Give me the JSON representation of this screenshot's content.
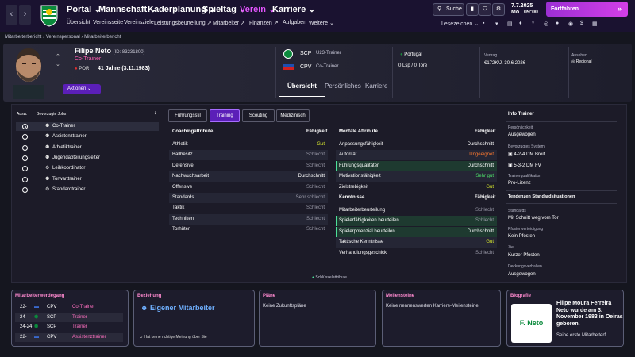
{
  "topnav": {
    "main": [
      "Portal",
      "Mannschaft",
      "Kaderplanung",
      "Spieltag",
      "Verein",
      "Karriere"
    ],
    "active": "Verein",
    "sub": [
      "Übersicht",
      "Vereinsseite",
      "Vereinsziele",
      "Leistungsbeurteilung",
      "Mitarbeiter",
      "Finanzen",
      "Aufgaben",
      "Weitere"
    ],
    "search": "Suche",
    "date_line1": "7.7.2025",
    "date_day": "Mo",
    "date_time": "09:00",
    "continue": "Fortfahren",
    "bookmarks": "Lesezeichen"
  },
  "breadcrumb": [
    "Mitarbeiterbericht",
    "Vereinspersonal",
    "Mitarbeiterbericht"
  ],
  "person": {
    "name": "Filipe Neto",
    "id": "(ID: 83231800)",
    "role": "Co-Trainer",
    "nation": "POR",
    "age": "41 Jahre (3.11.1983)",
    "actions": "Aktionen"
  },
  "clubs": [
    {
      "abbr": "SCP",
      "role": "U23-Trainer"
    },
    {
      "abbr": "CPV",
      "role": "Co-Trainer"
    }
  ],
  "header_stats": {
    "nationality": "Portugal",
    "apps": "0 Lsp / 0 Tore",
    "contract_label": "Vertrag",
    "contract_value": "€172K/J. 30.6.2026",
    "reputation_label": "Ansehen",
    "reputation_value": "Regional"
  },
  "tabs_main": [
    "Übersicht",
    "Persönliches",
    "Karriere"
  ],
  "jobs": {
    "col_select": "Ausw.",
    "col_jobs": "Bevorzugte Jobs",
    "items": [
      "Co-Trainer",
      "Assistenztrainer",
      "Athletiktrainer",
      "Jugendabteilungsleiter",
      "Leihkoordinator",
      "Torwarttrainer",
      "Standardtrainer"
    ]
  },
  "subtabs": [
    "Führungsstil",
    "Training",
    "Scouting",
    "Medizinisch"
  ],
  "coaching": {
    "title": "Coachingattribute",
    "value_header": "Fähigkeit",
    "rows": [
      {
        "name": "Athletik",
        "value": "Gut",
        "color": "yellow"
      },
      {
        "name": "Ballbesitz",
        "value": "Schlecht",
        "color": "gray"
      },
      {
        "name": "Defensive",
        "value": "Schlecht",
        "color": "gray"
      },
      {
        "name": "Nachwuchsarbeit",
        "value": "Durchschnitt",
        "color": "white"
      },
      {
        "name": "Offensive",
        "value": "Schlecht",
        "color": "gray"
      },
      {
        "name": "Standards",
        "value": "Sehr schlecht",
        "color": "gray"
      },
      {
        "name": "Taktik",
        "value": "Schlecht",
        "color": "gray"
      },
      {
        "name": "Techniken",
        "value": "Schlecht",
        "color": "gray"
      },
      {
        "name": "Torhüter",
        "value": "Schlecht",
        "color": "gray"
      }
    ]
  },
  "mental": {
    "title": "Mentale Attribute",
    "value_header": "Fähigkeit",
    "rows": [
      {
        "name": "Anpassungsfähigkeit",
        "value": "Durchschnitt",
        "color": "white"
      },
      {
        "name": "Autorität",
        "value": "Ungeeignet",
        "color": "orange"
      },
      {
        "name": "Führungsqualitäten",
        "value": "Durchschnitt",
        "color": "white"
      },
      {
        "name": "Motivationsfähigkeit",
        "value": "Sehr gut",
        "color": "green"
      },
      {
        "name": "Zielstrebigkeit",
        "value": "Gut",
        "color": "yellow"
      }
    ]
  },
  "knowledge": {
    "title": "Kenntnisse",
    "value_header": "Fähigkeit",
    "rows": [
      {
        "name": "Mitarbeiterbeurteilung",
        "value": "Schlecht",
        "color": "gray"
      },
      {
        "name": "Spielerfähigkeiten beurteilen",
        "value": "Schlecht",
        "color": "gray"
      },
      {
        "name": "Spielerpotenzial beurteilen",
        "value": "Durchschnitt",
        "color": "white"
      },
      {
        "name": "Taktische Kenntnisse",
        "value": "Gut",
        "color": "yellow"
      },
      {
        "name": "Verhandlungsgeschick",
        "value": "Schlecht",
        "color": "gray"
      }
    ]
  },
  "legend": "Schlüsselattribute",
  "info": {
    "title": "Info Trainer",
    "personality_label": "Persönlichkeit",
    "personality": "Ausgewogen",
    "system_label": "Bevorzugtes System",
    "systems": [
      "4-2-4 DM Breit",
      "5-3-2 DM FV"
    ],
    "qual_label": "Trainerqualifikation",
    "qual": "Pro-Lizenz",
    "tendencies_title": "Tendenzen Standardsituationen",
    "standards_label": "Standards",
    "standards": "Mit Schnitt weg vom Tor",
    "post_label": "Pfostenverteidigung",
    "post": "Kein Pfosten",
    "target_label": "Ziel",
    "target": "Kurzer Pfosten",
    "marking_label": "Deckungsverhalten",
    "marking": "Ausgewogen"
  },
  "cards": {
    "career": {
      "title": "Mitarbeiterwerdegang",
      "rows": [
        {
          "year": "22-",
          "club": "CPV",
          "role": "Co-Trainer"
        },
        {
          "year": "24",
          "club": "SCP",
          "role": "Trainer"
        },
        {
          "year": "24-24",
          "club": "SCP",
          "role": "Trainer"
        },
        {
          "year": "22-",
          "club": "CPV",
          "role": "Assistenztrainer"
        }
      ]
    },
    "relation": {
      "title": "Beziehung",
      "value": "Eigener Mitarbeiter",
      "note": "Hat keine richtige Meinung über Sie"
    },
    "plans": {
      "title": "Pläne",
      "text": "Keine Zukunftspläne"
    },
    "milestones": {
      "title": "Meilensteine",
      "text": "Keine nennenswerten Karriere-Meilensteine."
    },
    "bio": {
      "title": "Biografie",
      "logo_text": "F. Neto",
      "text": "Filipe Moura Ferreira Neto wurde am 3. November 1983 in Oeiras geboren.",
      "more": "Seine erste Mitarbeiterf..."
    }
  },
  "colors": {
    "accent": "#b434e6",
    "sporting_green": "#0b8a3c",
    "topbar": "#1a1230"
  }
}
